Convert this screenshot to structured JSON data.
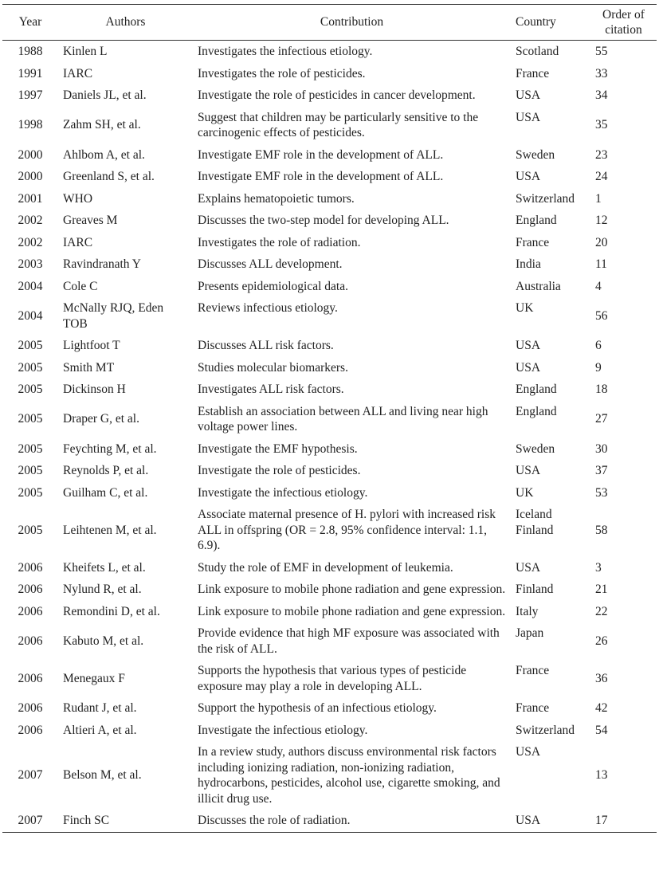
{
  "table": {
    "headers": [
      "Year",
      "Authors",
      "Contribution",
      "Country",
      "Order of citation"
    ],
    "rows": [
      [
        "1988",
        "Kinlen L",
        "Investigates the infectious etiology.",
        "Scotland",
        "55"
      ],
      [
        "1991",
        "IARC",
        "Investigates the role of pesticides.",
        "France",
        "33"
      ],
      [
        "1997",
        "Daniels JL, et al.",
        "Investigate the role of pesticides in cancer development.",
        "USA",
        "34"
      ],
      [
        "1998",
        "Zahm SH, et al.",
        "Suggest that children may be particularly sensitive to the carcinogenic effects of pesticides.",
        "USA",
        "35"
      ],
      [
        "2000",
        "Ahlbom A, et al.",
        "Investigate EMF role in the development of ALL.",
        "Sweden",
        "23"
      ],
      [
        "2000",
        "Greenland S, et al.",
        "Investigate EMF role in the development of ALL.",
        "USA",
        "24"
      ],
      [
        "2001",
        "WHO",
        "Explains hematopoietic tumors.",
        "Switzerland",
        "1"
      ],
      [
        "2002",
        "Greaves M",
        "Discusses the two-step model for developing ALL.",
        "England",
        "12"
      ],
      [
        "2002",
        "IARC",
        "Investigates the role of radiation.",
        "France",
        "20"
      ],
      [
        "2003",
        "Ravindranath Y",
        "Discusses ALL development.",
        "India",
        "11"
      ],
      [
        "2004",
        "Cole C",
        "Presents epidemiological data.",
        "Australia",
        "4"
      ],
      [
        "2004",
        "McNally RJQ, Eden TOB",
        "Reviews infectious etiology.",
        "UK",
        "56"
      ],
      [
        "2005",
        "Lightfoot T",
        "Discusses ALL risk factors.",
        "USA",
        "6"
      ],
      [
        "2005",
        "Smith MT",
        "Studies molecular biomarkers.",
        "USA",
        "9"
      ],
      [
        "2005",
        "Dickinson H",
        "Investigates ALL risk factors.",
        "England",
        "18"
      ],
      [
        "2005",
        "Draper G, et al.",
        "Establish an association between ALL and living near high voltage power lines.",
        "England",
        "27"
      ],
      [
        "2005",
        "Feychting M, et al.",
        "Investigate the EMF hypothesis.",
        "Sweden",
        "30"
      ],
      [
        "2005",
        "Reynolds P, et al.",
        "Investigate the role of pesticides.",
        "USA",
        "37"
      ],
      [
        "2005",
        "Guilham C, et al.",
        "Investigate the infectious etiology.",
        "UK",
        "53"
      ],
      [
        "2005",
        "Leihtenen M, et al.",
        "Associate maternal presence of H. pylori with increased risk ALL in offspring (OR = 2.8, 95% confidence interval: 1.1, 6.9).",
        "Iceland Finland",
        "58"
      ],
      [
        "2006",
        "Kheifets L, et al.",
        "Study the role of EMF in development of leukemia.",
        "USA",
        "3"
      ],
      [
        "2006",
        "Nylund R, et al.",
        "Link exposure to mobile phone radiation and gene expression.",
        "Finland",
        "21"
      ],
      [
        "2006",
        "Remondini D, et al.",
        "Link exposure to mobile phone radiation and gene expression.",
        "Italy",
        "22"
      ],
      [
        "2006",
        "Kabuto M, et al.",
        "Provide evidence that high MF exposure was associated with the risk of ALL.",
        "Japan",
        "26"
      ],
      [
        "2006",
        "Menegaux F",
        "Supports the hypothesis that various types of pesticide exposure may play a role in developing ALL.",
        "France",
        "36"
      ],
      [
        "2006",
        "Rudant J, et al.",
        "Support the hypothesis of an infectious etiology.",
        "France",
        "42"
      ],
      [
        "2006",
        "Altieri A, et al.",
        "Investigate the infectious etiology.",
        "Switzerland",
        "54"
      ],
      [
        "2007",
        "Belson M, et al.",
        "In a review study, authors discuss environmental risk factors including ionizing radiation, non-ionizing radiation, hydrocarbons, pesticides, alcohol use, cigarette smoking, and illicit drug use.",
        "USA",
        "13"
      ],
      [
        "2007",
        "Finch SC",
        "Discusses the role of radiation.",
        "USA",
        "17"
      ]
    ]
  }
}
